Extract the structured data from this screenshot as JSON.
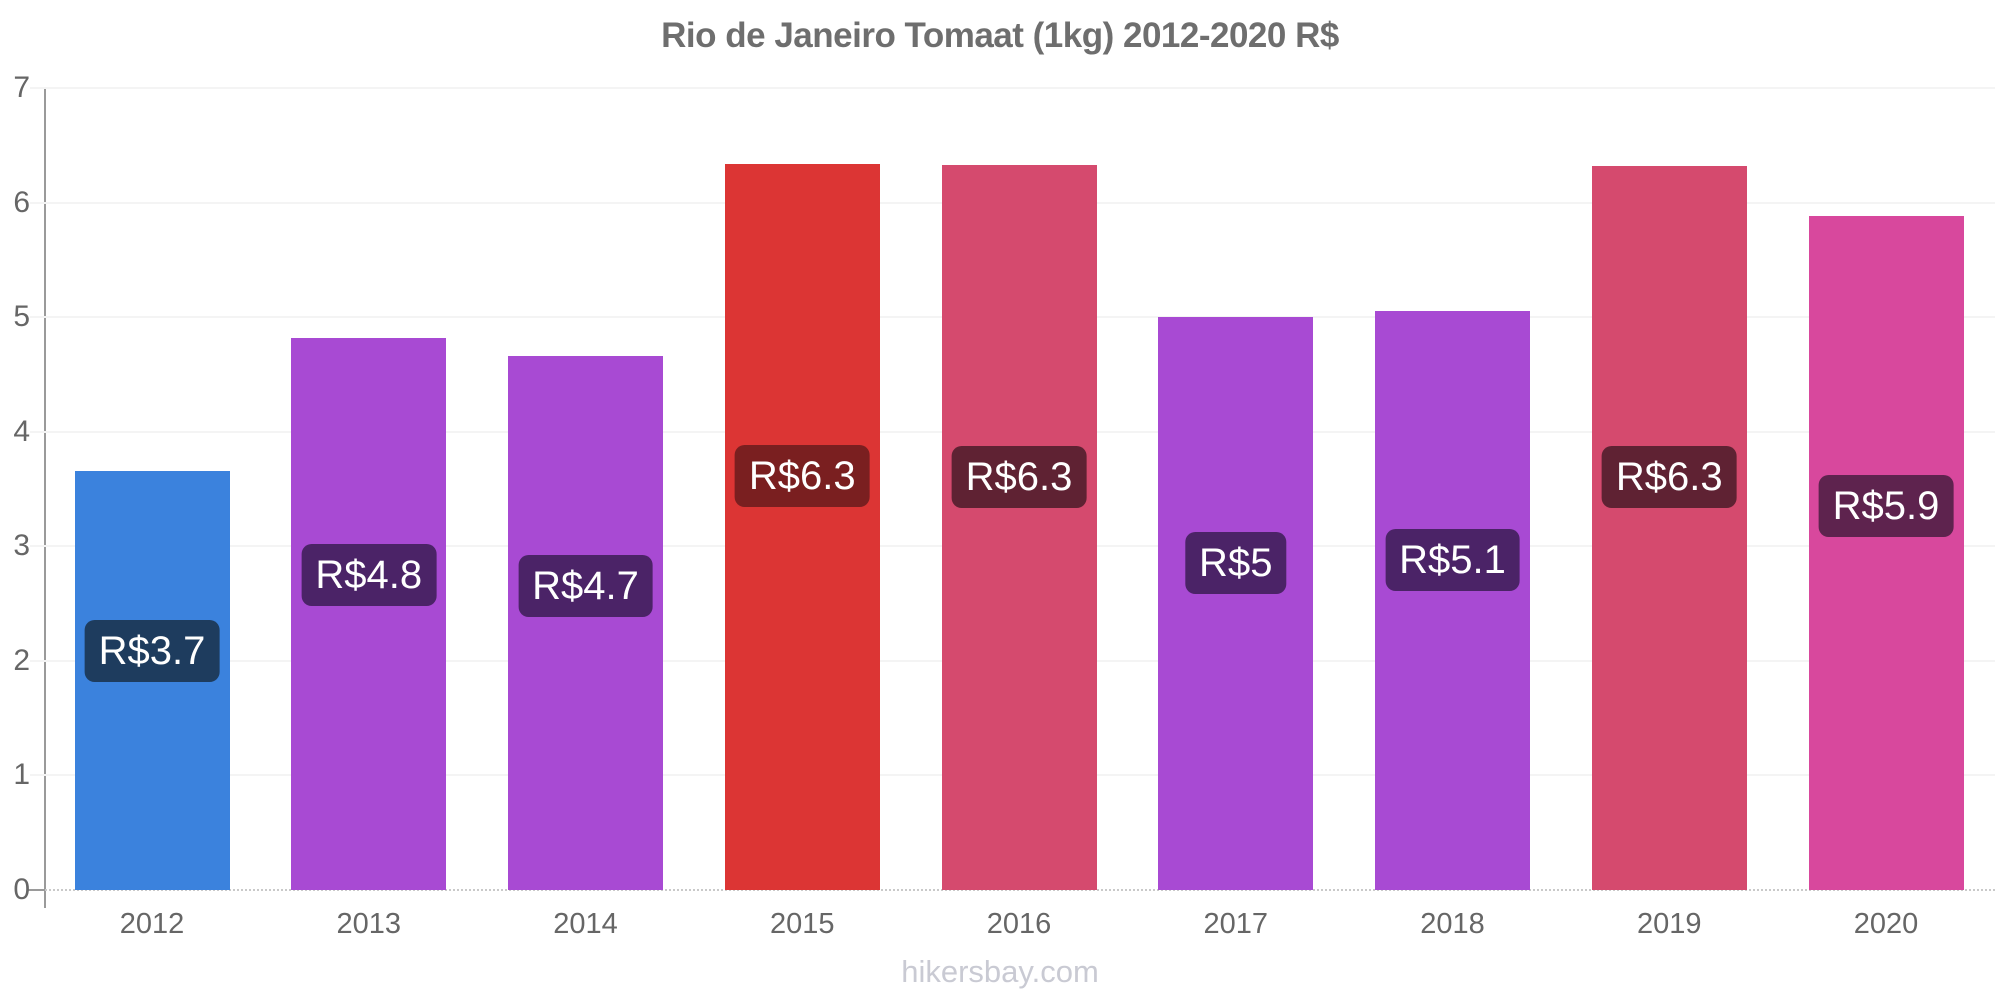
{
  "chart_data": {
    "type": "bar",
    "title": "Rio de Janeiro Tomaat (1kg) 2012-2020 R$",
    "xlabel": "",
    "ylabel": "",
    "categories": [
      "2012",
      "2013",
      "2014",
      "2015",
      "2016",
      "2017",
      "2018",
      "2019",
      "2020"
    ],
    "values": [
      3.66,
      4.82,
      4.66,
      6.34,
      6.33,
      5.0,
      5.05,
      6.32,
      5.88
    ],
    "value_labels": [
      "R$3.7",
      "R$4.8",
      "R$4.7",
      "R$6.3",
      "R$6.3",
      "R$5",
      "R$5.1",
      "R$6.3",
      "R$5.9"
    ],
    "bar_colors": [
      "#3b82dd",
      "#a84ad3",
      "#a84ad3",
      "#dc3534",
      "#d54a6e",
      "#a84ad3",
      "#a84ad3",
      "#d54a6e",
      "#d8489d"
    ],
    "value_label_bg_colors": [
      "#1e3c5e",
      "#4b2367",
      "#4b2367",
      "#7a1f20",
      "#5f2233",
      "#4b2367",
      "#4b2367",
      "#5f2233",
      "#5e234e"
    ],
    "ylim": [
      0,
      7
    ],
    "yticks": [
      0,
      1,
      2,
      3,
      4,
      5,
      6,
      7
    ],
    "grid": true,
    "legend": "none"
  },
  "colors": {
    "title_text": "#6e6e6e",
    "axis_line": "#9a9a9a",
    "gridline": "#f4f4f4",
    "baseline": "#c9c9c9",
    "tick_text": "#666666",
    "value_label_text": "#ffffff",
    "footer_text": "#c9cad3",
    "background": "#ffffff"
  },
  "footer": {
    "text": "hikersbay.com"
  }
}
